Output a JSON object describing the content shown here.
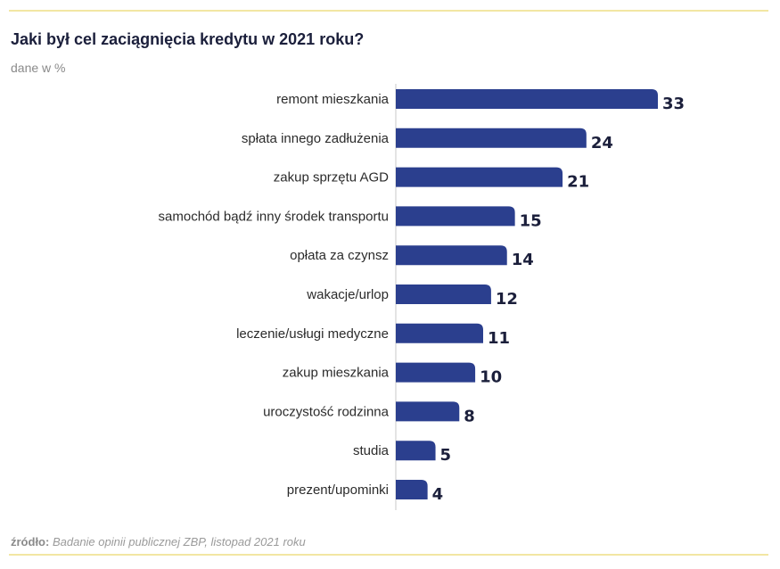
{
  "header": {
    "title": "Jaki był cel zaciągnięcia kredytu w 2021 roku?",
    "subtitle": "dane w %"
  },
  "footer": {
    "source_label": "źródło:",
    "source_text": "Badanie opinii publicznej ZBP, listopad 2021 roku"
  },
  "colors": {
    "bar": "#2b3f8e",
    "accent_rule": "#f2e6a3",
    "axis": "#c9c9c9"
  },
  "chart_data": {
    "type": "bar",
    "orientation": "horizontal",
    "title": "Jaki był cel zaciągnięcia kredytu w 2021 roku?",
    "subtitle": "dane w %",
    "categories": [
      "remont mieszkania",
      "spłata innego zadłużenia",
      "zakup sprzętu AGD",
      "samochód bądź inny środek transportu",
      "opłata za czynsz",
      "wakacje/urlop",
      "leczenie/usługi medyczne",
      "zakup mieszkania",
      "uroczystość rodzinna",
      "studia",
      "prezent/upominki"
    ],
    "values": [
      33,
      24,
      21,
      15,
      14,
      12,
      11,
      10,
      8,
      5,
      4
    ],
    "xlim": [
      0,
      33
    ],
    "grid": false,
    "legend": "none"
  }
}
